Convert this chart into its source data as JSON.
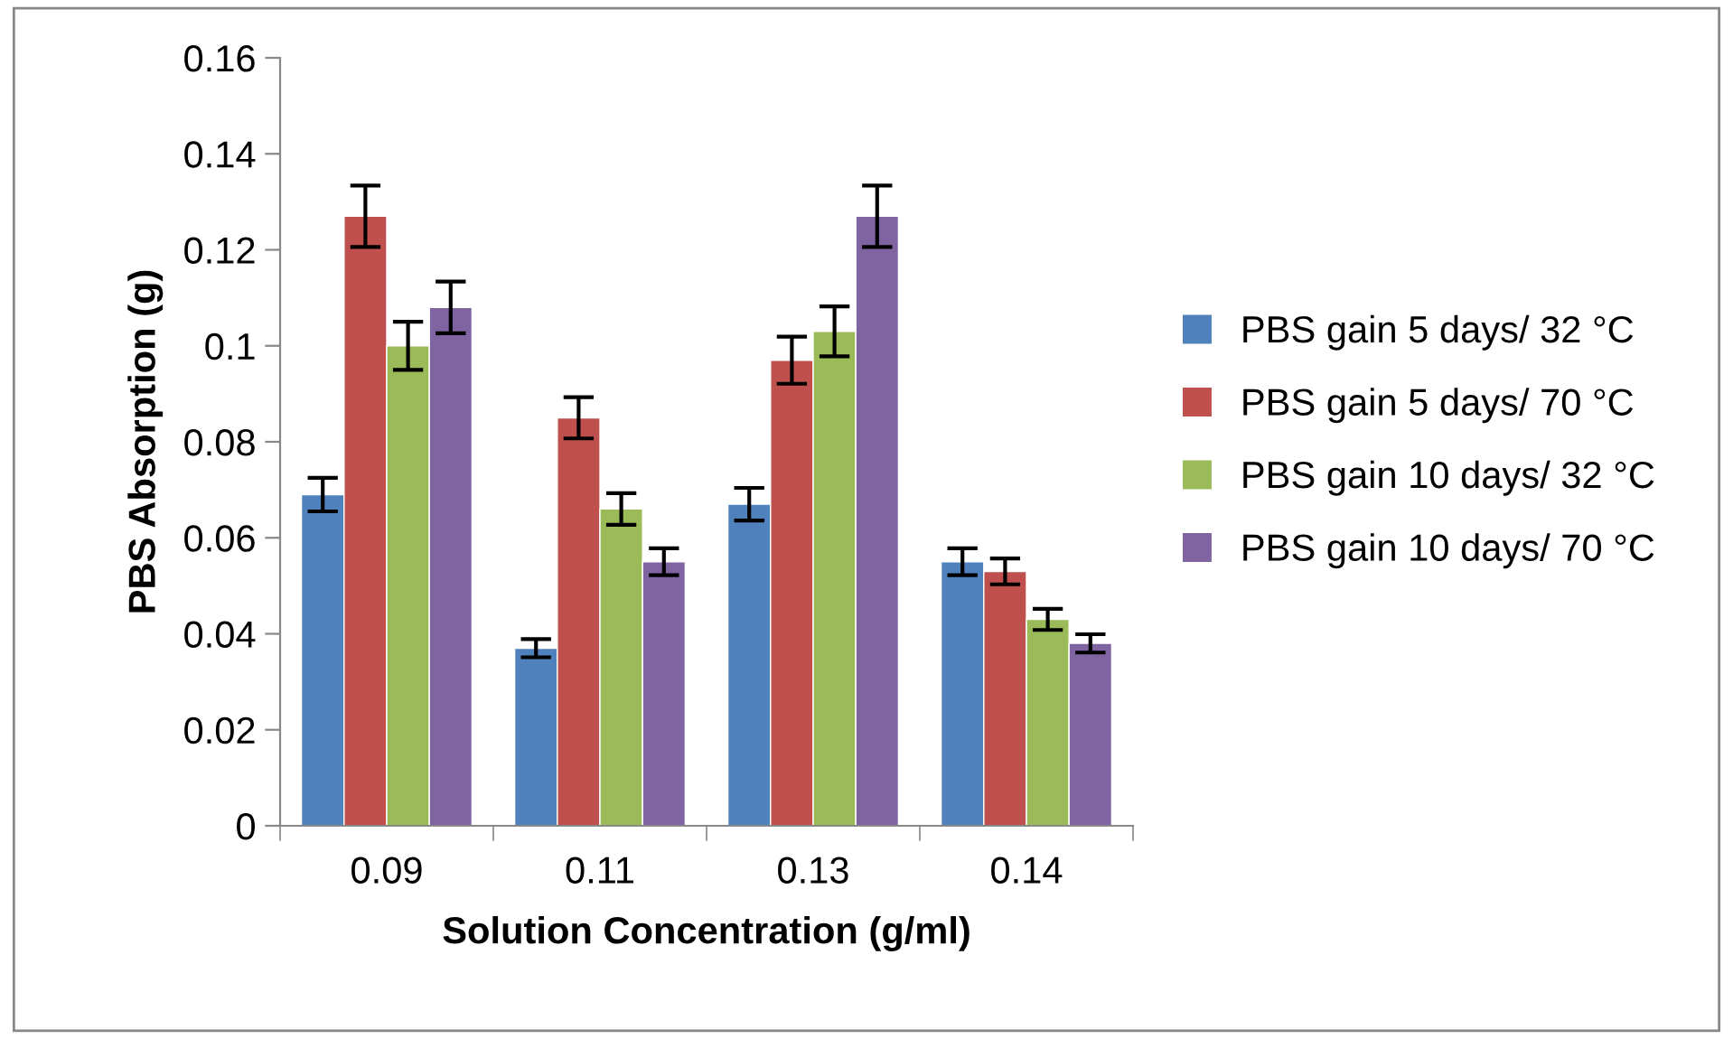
{
  "chart_data": {
    "type": "bar",
    "xlabel": "Solution Concentration (g/ml)",
    "ylabel": "PBS Absorption (g)",
    "categories": [
      "0.09",
      "0.11",
      "0.13",
      "0.14"
    ],
    "series": [
      {
        "name": "PBS gain 5 days/ 32 °C",
        "color": "#4f81bd",
        "values": [
          0.069,
          0.037,
          0.067,
          0.055
        ],
        "errors": [
          0.0035,
          0.0019,
          0.0034,
          0.0028
        ]
      },
      {
        "name": "PBS gain 5 days/ 70 °C",
        "color": "#c0504d",
        "values": [
          0.127,
          0.085,
          0.097,
          0.053
        ],
        "errors": [
          0.0064,
          0.0043,
          0.0049,
          0.0027
        ]
      },
      {
        "name": "PBS gain 10 days/ 32 °C",
        "color": "#9bbb59",
        "values": [
          0.1,
          0.066,
          0.103,
          0.043
        ],
        "errors": [
          0.005,
          0.0033,
          0.0052,
          0.0022
        ]
      },
      {
        "name": "PBS gain 10 days/ 70 °C",
        "color": "#8064a2",
        "values": [
          0.108,
          0.055,
          0.127,
          0.038
        ],
        "errors": [
          0.0054,
          0.0028,
          0.0064,
          0.0019
        ]
      }
    ],
    "ylim": [
      0,
      0.16
    ],
    "yticks": [
      {
        "value": 0,
        "label": "0"
      },
      0.02,
      0.04,
      0.06,
      0.08,
      {
        "value": 0.1,
        "label": "0.1"
      },
      0.12,
      0.14,
      0.16
    ],
    "grid": false,
    "legend": "right"
  }
}
